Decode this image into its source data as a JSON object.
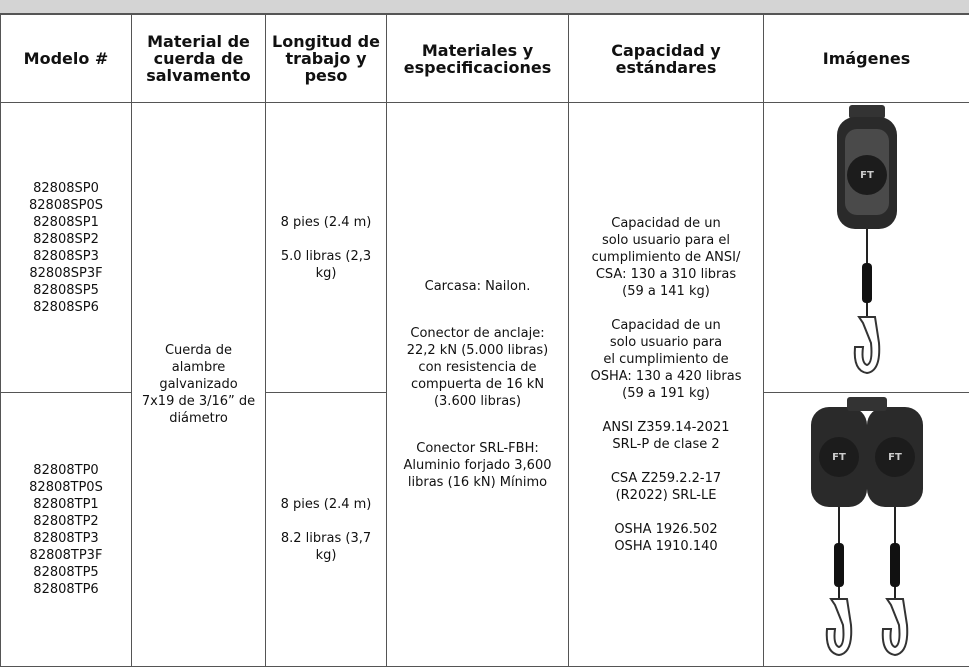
{
  "table": {
    "headers": [
      [
        "Modelo #"
      ],
      [
        "Material de",
        "cuerda de",
        "salvamento"
      ],
      [
        "Longitud de",
        "trabajo y",
        "peso"
      ],
      [
        "Materiales y",
        "especificaciones"
      ],
      [
        "Capacidad y",
        "estándares"
      ],
      [
        "Imágenes"
      ]
    ],
    "rows": [
      {
        "models": [
          "82808SP0",
          "82808SP0S",
          "82808SP1",
          "82808SP2",
          "82808SP3",
          "82808SP3F",
          "82808SP5",
          "82808SP6"
        ],
        "length": [
          [
            "8 pies (2.4 m)"
          ],
          [
            "5.0 libras (2,3",
            "kg)"
          ]
        ]
      },
      {
        "models": [
          "82808TP0",
          "82808TP0S",
          "82808TP1",
          "82808TP2",
          "82808TP3",
          "82808TP3F",
          "82808TP5",
          "82808TP6"
        ],
        "length": [
          [
            "8 pies (2.4 m)"
          ],
          [
            "8.2 libras (3,7",
            "kg)"
          ]
        ]
      }
    ],
    "material": [
      [
        "Cuerda de",
        "alambre",
        "galvanizado",
        "7x19 de 3/16” de",
        "diámetro"
      ]
    ],
    "specs": [
      [
        "Carcasa: Nailon."
      ],
      [
        "Conector de anclaje:",
        "22,2 kN (5.000 libras)",
        "con resistencia de",
        "compuerta de 16 kN",
        "(3.600 libras)"
      ],
      [
        "Conector SRL-FBH:",
        "Aluminio forjado 3,600",
        "libras (16 kN) Mínimo"
      ]
    ],
    "capacity": [
      [
        "Capacidad de un",
        "solo usuario para el",
        "cumplimiento de ANSI/",
        "CSA: 130 a 310 libras",
        "(59 a 141 kg)"
      ],
      [
        "Capacidad de un",
        "solo usuario para",
        "el cumplimiento de",
        "OSHA: 130 a 420 libras",
        "(59 a 191 kg)"
      ],
      [
        "ANSI Z359.14-2021",
        "SRL-P de clase 2"
      ],
      [
        "CSA Z259.2.2-17",
        "(R2022) SRL-LE"
      ],
      [
        "OSHA 1926.502",
        "OSHA 1910.140"
      ]
    ]
  }
}
